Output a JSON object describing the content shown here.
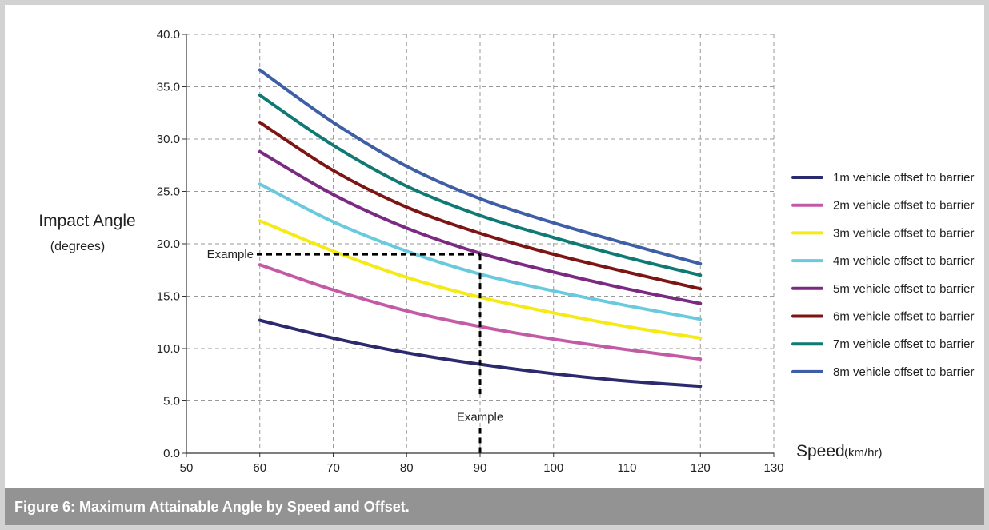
{
  "chart_data": {
    "type": "line",
    "title": "",
    "xlabel": "Speed",
    "xlabel_unit": "(km/hr)",
    "ylabel": "Impact Angle",
    "ylabel_unit": "(degrees)",
    "xlim": [
      50,
      130
    ],
    "ylim": [
      0,
      40
    ],
    "xticks": [
      50,
      60,
      70,
      80,
      90,
      100,
      110,
      120,
      130
    ],
    "xtick_labels": [
      "50",
      "60",
      "70",
      "80",
      "90",
      "100",
      "110",
      "120",
      "130"
    ],
    "yticks": [
      0,
      5,
      10,
      15,
      20,
      25,
      30,
      35,
      40
    ],
    "ytick_labels": [
      "0.0",
      "5.0",
      "10.0",
      "15.0",
      "20.0",
      "25.0",
      "30.0",
      "35.0",
      "40.0"
    ],
    "grid": true,
    "legend_position": "right",
    "x": [
      60,
      70,
      80,
      90,
      100,
      110,
      120
    ],
    "series": [
      {
        "name": "1m vehicle offset to barrier",
        "color": "#2b2a6e",
        "values": [
          12.7,
          11.0,
          9.6,
          8.5,
          7.6,
          6.9,
          6.4
        ]
      },
      {
        "name": "2m vehicle offset to barrier",
        "color": "#c35aa6",
        "values": [
          18.0,
          15.6,
          13.6,
          12.1,
          10.9,
          9.9,
          9.0
        ]
      },
      {
        "name": "3m vehicle offset to barrier",
        "color": "#f5ea14",
        "values": [
          22.2,
          19.3,
          16.8,
          14.9,
          13.4,
          12.1,
          11.0
        ]
      },
      {
        "name": "4m vehicle offset to barrier",
        "color": "#69c9dd",
        "values": [
          25.7,
          22.1,
          19.3,
          17.1,
          15.5,
          14.1,
          12.8
        ]
      },
      {
        "name": "5m vehicle offset to barrier",
        "color": "#7b2a82",
        "values": [
          28.8,
          24.7,
          21.5,
          19.1,
          17.3,
          15.7,
          14.3
        ]
      },
      {
        "name": "6m vehicle offset to barrier",
        "color": "#7d1515",
        "values": [
          31.6,
          27.0,
          23.5,
          21.0,
          19.0,
          17.3,
          15.7
        ]
      },
      {
        "name": "7m vehicle offset to barrier",
        "color": "#0f7a73",
        "values": [
          34.2,
          29.4,
          25.5,
          22.7,
          20.6,
          18.7,
          17.0
        ]
      },
      {
        "name": "8m vehicle offset to barrier",
        "color": "#3e5ea6",
        "values": [
          36.6,
          31.6,
          27.4,
          24.3,
          22.0,
          20.0,
          18.1
        ]
      }
    ],
    "annotations": [
      {
        "label": "Example",
        "x": 90,
        "y": 19,
        "kind": "example-guide"
      }
    ]
  },
  "caption": "Figure 6: Maximum Attainable Angle by Speed and Offset."
}
